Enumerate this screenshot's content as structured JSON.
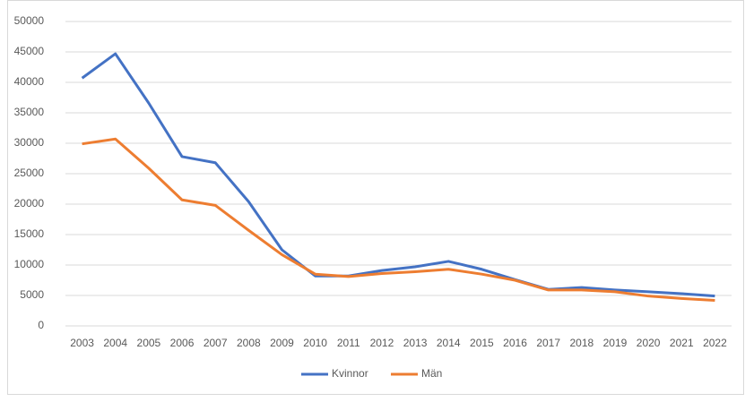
{
  "chart_data": {
    "type": "line",
    "categories": [
      "2003",
      "2004",
      "2005",
      "2006",
      "2007",
      "2008",
      "2009",
      "2010",
      "2011",
      "2012",
      "2013",
      "2014",
      "2015",
      "2016",
      "2017",
      "2018",
      "2019",
      "2020",
      "2021",
      "2022"
    ],
    "series": [
      {
        "name": "Kvinnor",
        "color": "#4472c4",
        "values": [
          40700,
          44700,
          36600,
          27800,
          26800,
          20400,
          12500,
          8200,
          8200,
          9100,
          9700,
          10600,
          9300,
          7600,
          6000,
          6300,
          5900,
          5600,
          5300,
          4900
        ]
      },
      {
        "name": "Män",
        "color": "#ed7d31",
        "values": [
          29900,
          30700,
          25900,
          20700,
          19800,
          15700,
          11700,
          8500,
          8100,
          8600,
          8900,
          9300,
          8500,
          7500,
          5900,
          5900,
          5600,
          4900,
          4500,
          4200
        ]
      }
    ],
    "ylim": [
      0,
      50000
    ],
    "yticks": [
      0,
      5000,
      10000,
      15000,
      20000,
      25000,
      30000,
      35000,
      40000,
      45000,
      50000
    ],
    "grid": true,
    "legend": "bottom"
  }
}
